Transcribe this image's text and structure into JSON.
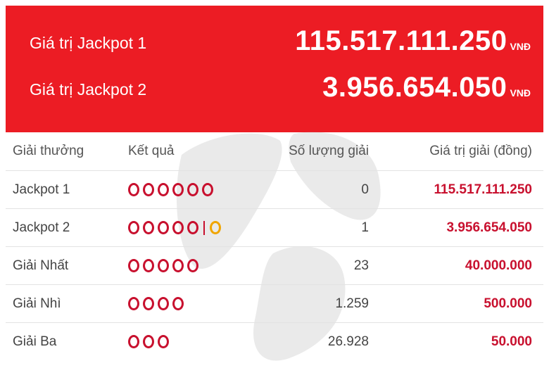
{
  "jackpot": {
    "rows": [
      {
        "label": "Giá trị Jackpot 1",
        "amount": "115.517.111.250",
        "unit": "VNĐ"
      },
      {
        "label": "Giá trị Jackpot 2",
        "amount": "3.956.654.050",
        "unit": "VNĐ"
      }
    ]
  },
  "colors": {
    "banner": "#ec1c24",
    "ball": "#c8102e",
    "bonus_ball": "#f0a500"
  },
  "table": {
    "headers": {
      "prize": "Giải thưởng",
      "result": "Kết quả",
      "count": "Số lượng giải",
      "value": "Giá trị giải (đồng)"
    },
    "rows": [
      {
        "prize": "Jackpot 1",
        "balls": 6,
        "bonus": false,
        "count": "0",
        "value": "115.517.111.250"
      },
      {
        "prize": "Jackpot 2",
        "balls": 5,
        "bonus": true,
        "count": "1",
        "value": "3.956.654.050"
      },
      {
        "prize": "Giải Nhất",
        "balls": 5,
        "bonus": false,
        "count": "23",
        "value": "40.000.000"
      },
      {
        "prize": "Giải Nhì",
        "balls": 4,
        "bonus": false,
        "count": "1.259",
        "value": "500.000"
      },
      {
        "prize": "Giải Ba",
        "balls": 3,
        "bonus": false,
        "count": "26.928",
        "value": "50.000"
      }
    ]
  }
}
